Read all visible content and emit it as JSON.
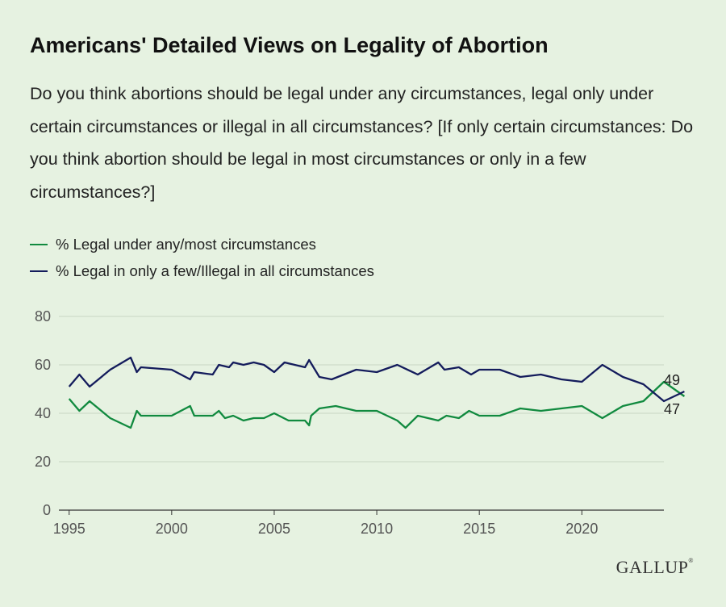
{
  "title": "Americans' Detailed Views on Legality of Abortion",
  "subtitle": "Do you think abortions should be legal under any circumstances, legal only under certain circumstances or illegal in all circumstances? [If only certain circumstances: Do you think abortion should be legal in most circumstances or only in a few circumstances?]",
  "source_logo": "GALLUP",
  "colors": {
    "green": "#118a3f",
    "navy": "#141c5c",
    "grid": "#c8d6c4",
    "axis": "#333333",
    "tick_text": "#555555"
  },
  "chart_data": {
    "type": "line",
    "xlim": [
      1994.5,
      2024
    ],
    "ylim": [
      0,
      80
    ],
    "yticks": [
      0,
      20,
      40,
      60,
      80
    ],
    "xticks": [
      1995,
      2000,
      2005,
      2010,
      2015,
      2020
    ],
    "grid": true,
    "legend_position": "top-left",
    "series": [
      {
        "name": "% Legal under any/most circumstances",
        "color": "#118a3f",
        "end_label": "47",
        "points": [
          [
            1995.0,
            46
          ],
          [
            1995.5,
            41
          ],
          [
            1996.0,
            45
          ],
          [
            1997.0,
            38
          ],
          [
            1998.0,
            34
          ],
          [
            1998.3,
            41
          ],
          [
            1998.5,
            39
          ],
          [
            1999.0,
            39
          ],
          [
            2000.0,
            39
          ],
          [
            2000.9,
            43
          ],
          [
            2001.1,
            39
          ],
          [
            2002.0,
            39
          ],
          [
            2002.3,
            41
          ],
          [
            2002.6,
            38
          ],
          [
            2003.0,
            39
          ],
          [
            2003.5,
            37
          ],
          [
            2004.0,
            38
          ],
          [
            2004.5,
            38
          ],
          [
            2005.0,
            40
          ],
          [
            2005.7,
            37
          ],
          [
            2006.5,
            37
          ],
          [
            2006.7,
            35
          ],
          [
            2006.8,
            39
          ],
          [
            2007.2,
            42
          ],
          [
            2008.0,
            43
          ],
          [
            2009.0,
            41
          ],
          [
            2010.0,
            41
          ],
          [
            2011.0,
            37
          ],
          [
            2011.4,
            34
          ],
          [
            2012.0,
            39
          ],
          [
            2013.0,
            37
          ],
          [
            2013.4,
            39
          ],
          [
            2014.0,
            38
          ],
          [
            2014.5,
            41
          ],
          [
            2015.0,
            39
          ],
          [
            2016.0,
            39
          ],
          [
            2017.0,
            42
          ],
          [
            2018.0,
            41
          ],
          [
            2020.0,
            43
          ],
          [
            2021.0,
            38
          ],
          [
            2022.0,
            43
          ],
          [
            2023.0,
            45
          ],
          [
            2024.0,
            53
          ],
          [
            2025.0,
            47
          ]
        ]
      },
      {
        "name": "% Legal in only a few/Illegal in all circumstances",
        "color": "#141c5c",
        "end_label": "49",
        "points": [
          [
            1995.0,
            51
          ],
          [
            1995.5,
            56
          ],
          [
            1996.0,
            51
          ],
          [
            1997.0,
            58
          ],
          [
            1998.0,
            63
          ],
          [
            1998.3,
            57
          ],
          [
            1998.5,
            59
          ],
          [
            2000.0,
            58
          ],
          [
            2000.9,
            54
          ],
          [
            2001.1,
            57
          ],
          [
            2002.0,
            56
          ],
          [
            2002.3,
            60
          ],
          [
            2002.8,
            59
          ],
          [
            2003.0,
            61
          ],
          [
            2003.5,
            60
          ],
          [
            2004.0,
            61
          ],
          [
            2004.5,
            60
          ],
          [
            2005.0,
            57
          ],
          [
            2005.5,
            61
          ],
          [
            2006.5,
            59
          ],
          [
            2006.7,
            62
          ],
          [
            2007.2,
            55
          ],
          [
            2007.8,
            54
          ],
          [
            2009.0,
            58
          ],
          [
            2010.0,
            57
          ],
          [
            2011.0,
            60
          ],
          [
            2012.0,
            56
          ],
          [
            2013.0,
            61
          ],
          [
            2013.3,
            58
          ],
          [
            2014.0,
            59
          ],
          [
            2014.6,
            56
          ],
          [
            2015.0,
            58
          ],
          [
            2016.0,
            58
          ],
          [
            2017.0,
            55
          ],
          [
            2018.0,
            56
          ],
          [
            2019.0,
            54
          ],
          [
            2020.0,
            53
          ],
          [
            2021.0,
            60
          ],
          [
            2022.0,
            55
          ],
          [
            2023.0,
            52
          ],
          [
            2024.0,
            45
          ],
          [
            2025.0,
            49
          ]
        ]
      }
    ]
  }
}
